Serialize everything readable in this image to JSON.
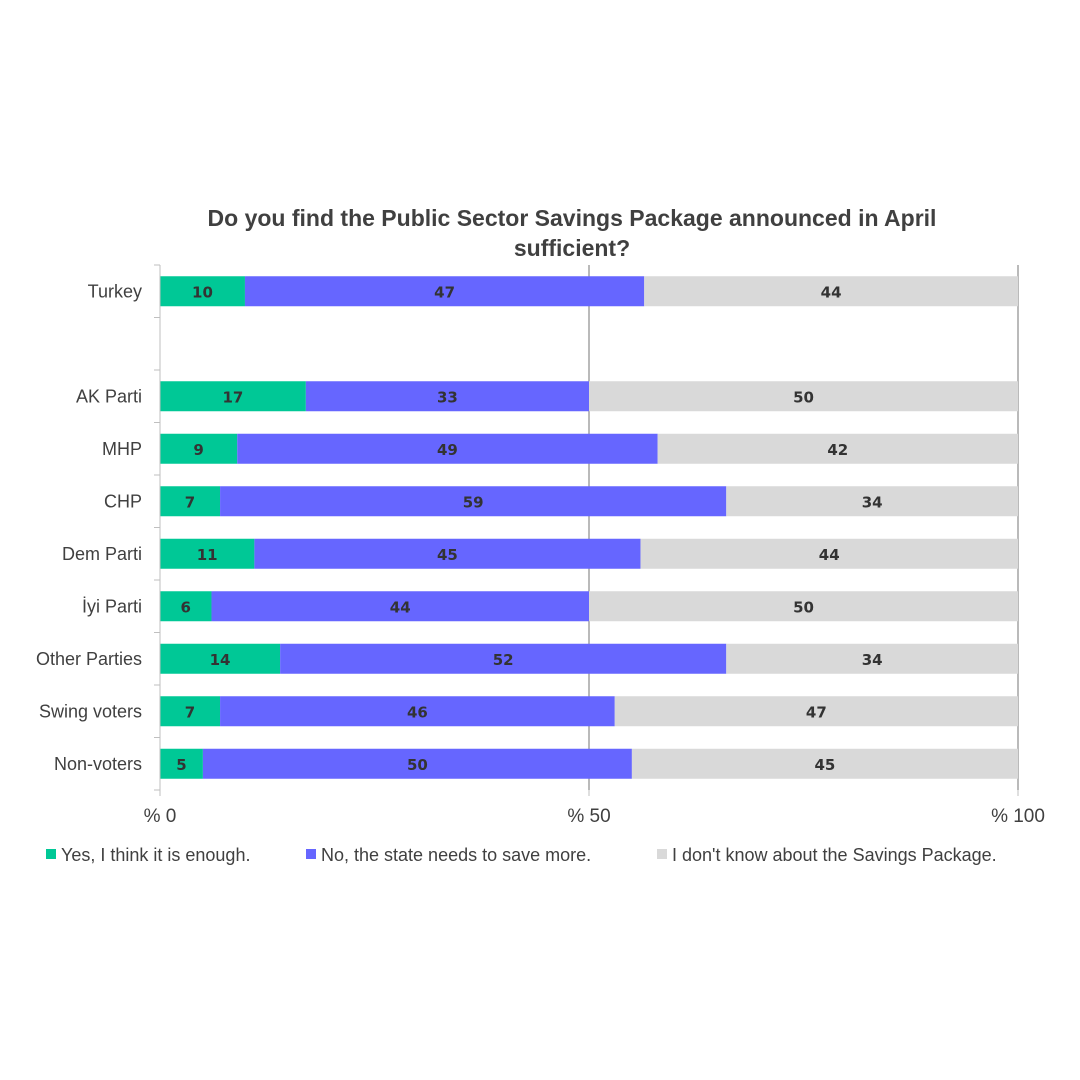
{
  "chart_data": {
    "type": "bar",
    "orientation": "horizontal",
    "stacked": true,
    "title": "Do you find the Public Sector Savings Package announced in April sufficient?",
    "title_lines": [
      "Do you find the Public Sector Savings Package announced in April",
      "sufficient?"
    ],
    "categories": [
      "Turkey",
      "",
      "AK Parti",
      "MHP",
      "CHP",
      "Dem Parti",
      "İyi Parti",
      "Other Parties",
      "Swing voters",
      "Non-voters"
    ],
    "series": [
      {
        "name": "Yes, I think it is enough.",
        "color": "#00C896",
        "values": [
          10,
          null,
          17,
          9,
          7,
          11,
          6,
          14,
          7,
          5
        ]
      },
      {
        "name": "No, the state needs to save more.",
        "color": "#6666FF",
        "values": [
          47,
          null,
          33,
          49,
          59,
          45,
          44,
          52,
          46,
          50
        ]
      },
      {
        "name": "I don't know about the Savings Package.",
        "color": "#D9D9D9",
        "values": [
          44,
          null,
          50,
          42,
          34,
          44,
          50,
          34,
          47,
          45
        ]
      }
    ],
    "xlim": [
      0,
      100
    ],
    "xticks": [
      0,
      50,
      100
    ],
    "xtick_labels": [
      "% 0",
      "% 50",
      "% 100"
    ],
    "xlabel": "",
    "ylabel": "",
    "grid": "vertical at 50 and 100",
    "legend_position": "bottom"
  }
}
